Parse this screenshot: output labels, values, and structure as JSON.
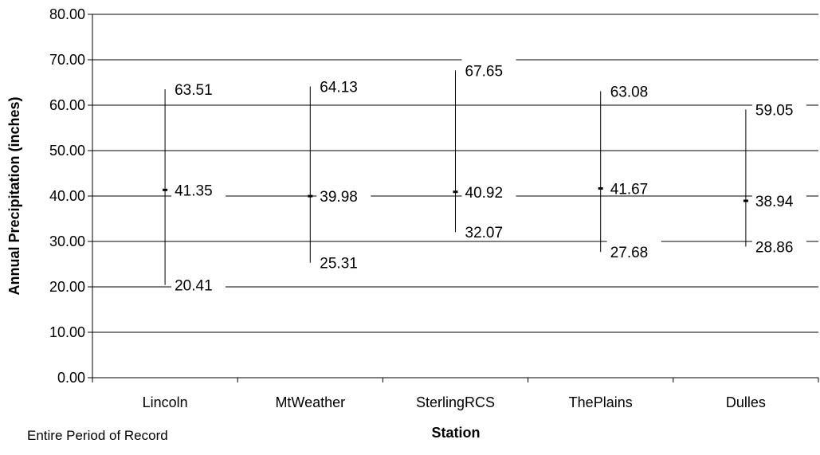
{
  "chart_data": {
    "type": "range",
    "title": "",
    "xlabel": "Station",
    "ylabel": "Annual Precipitation (inches)",
    "note": "Entire Period of Record",
    "ylim": [
      0,
      80
    ],
    "yticks": [
      "0.00",
      "10.00",
      "20.00",
      "30.00",
      "40.00",
      "50.00",
      "60.00",
      "70.00",
      "80.00"
    ],
    "grid": true,
    "categories": [
      "Lincoln",
      "MtWeather",
      "SterlingRCS",
      "ThePlains",
      "Dulles"
    ],
    "high": [
      63.51,
      64.13,
      67.65,
      63.08,
      59.05
    ],
    "mean": [
      41.35,
      39.98,
      40.92,
      41.67,
      38.94
    ],
    "low": [
      20.41,
      25.31,
      32.07,
      27.68,
      28.86
    ],
    "high_labels": [
      "63.51",
      "64.13",
      "67.65",
      "63.08",
      "59.05"
    ],
    "mean_labels": [
      "41.35",
      "39.98",
      "40.92",
      "41.67",
      "38.94"
    ],
    "low_labels": [
      "20.41",
      "25.31",
      "32.07",
      "27.68",
      "28.86"
    ]
  }
}
